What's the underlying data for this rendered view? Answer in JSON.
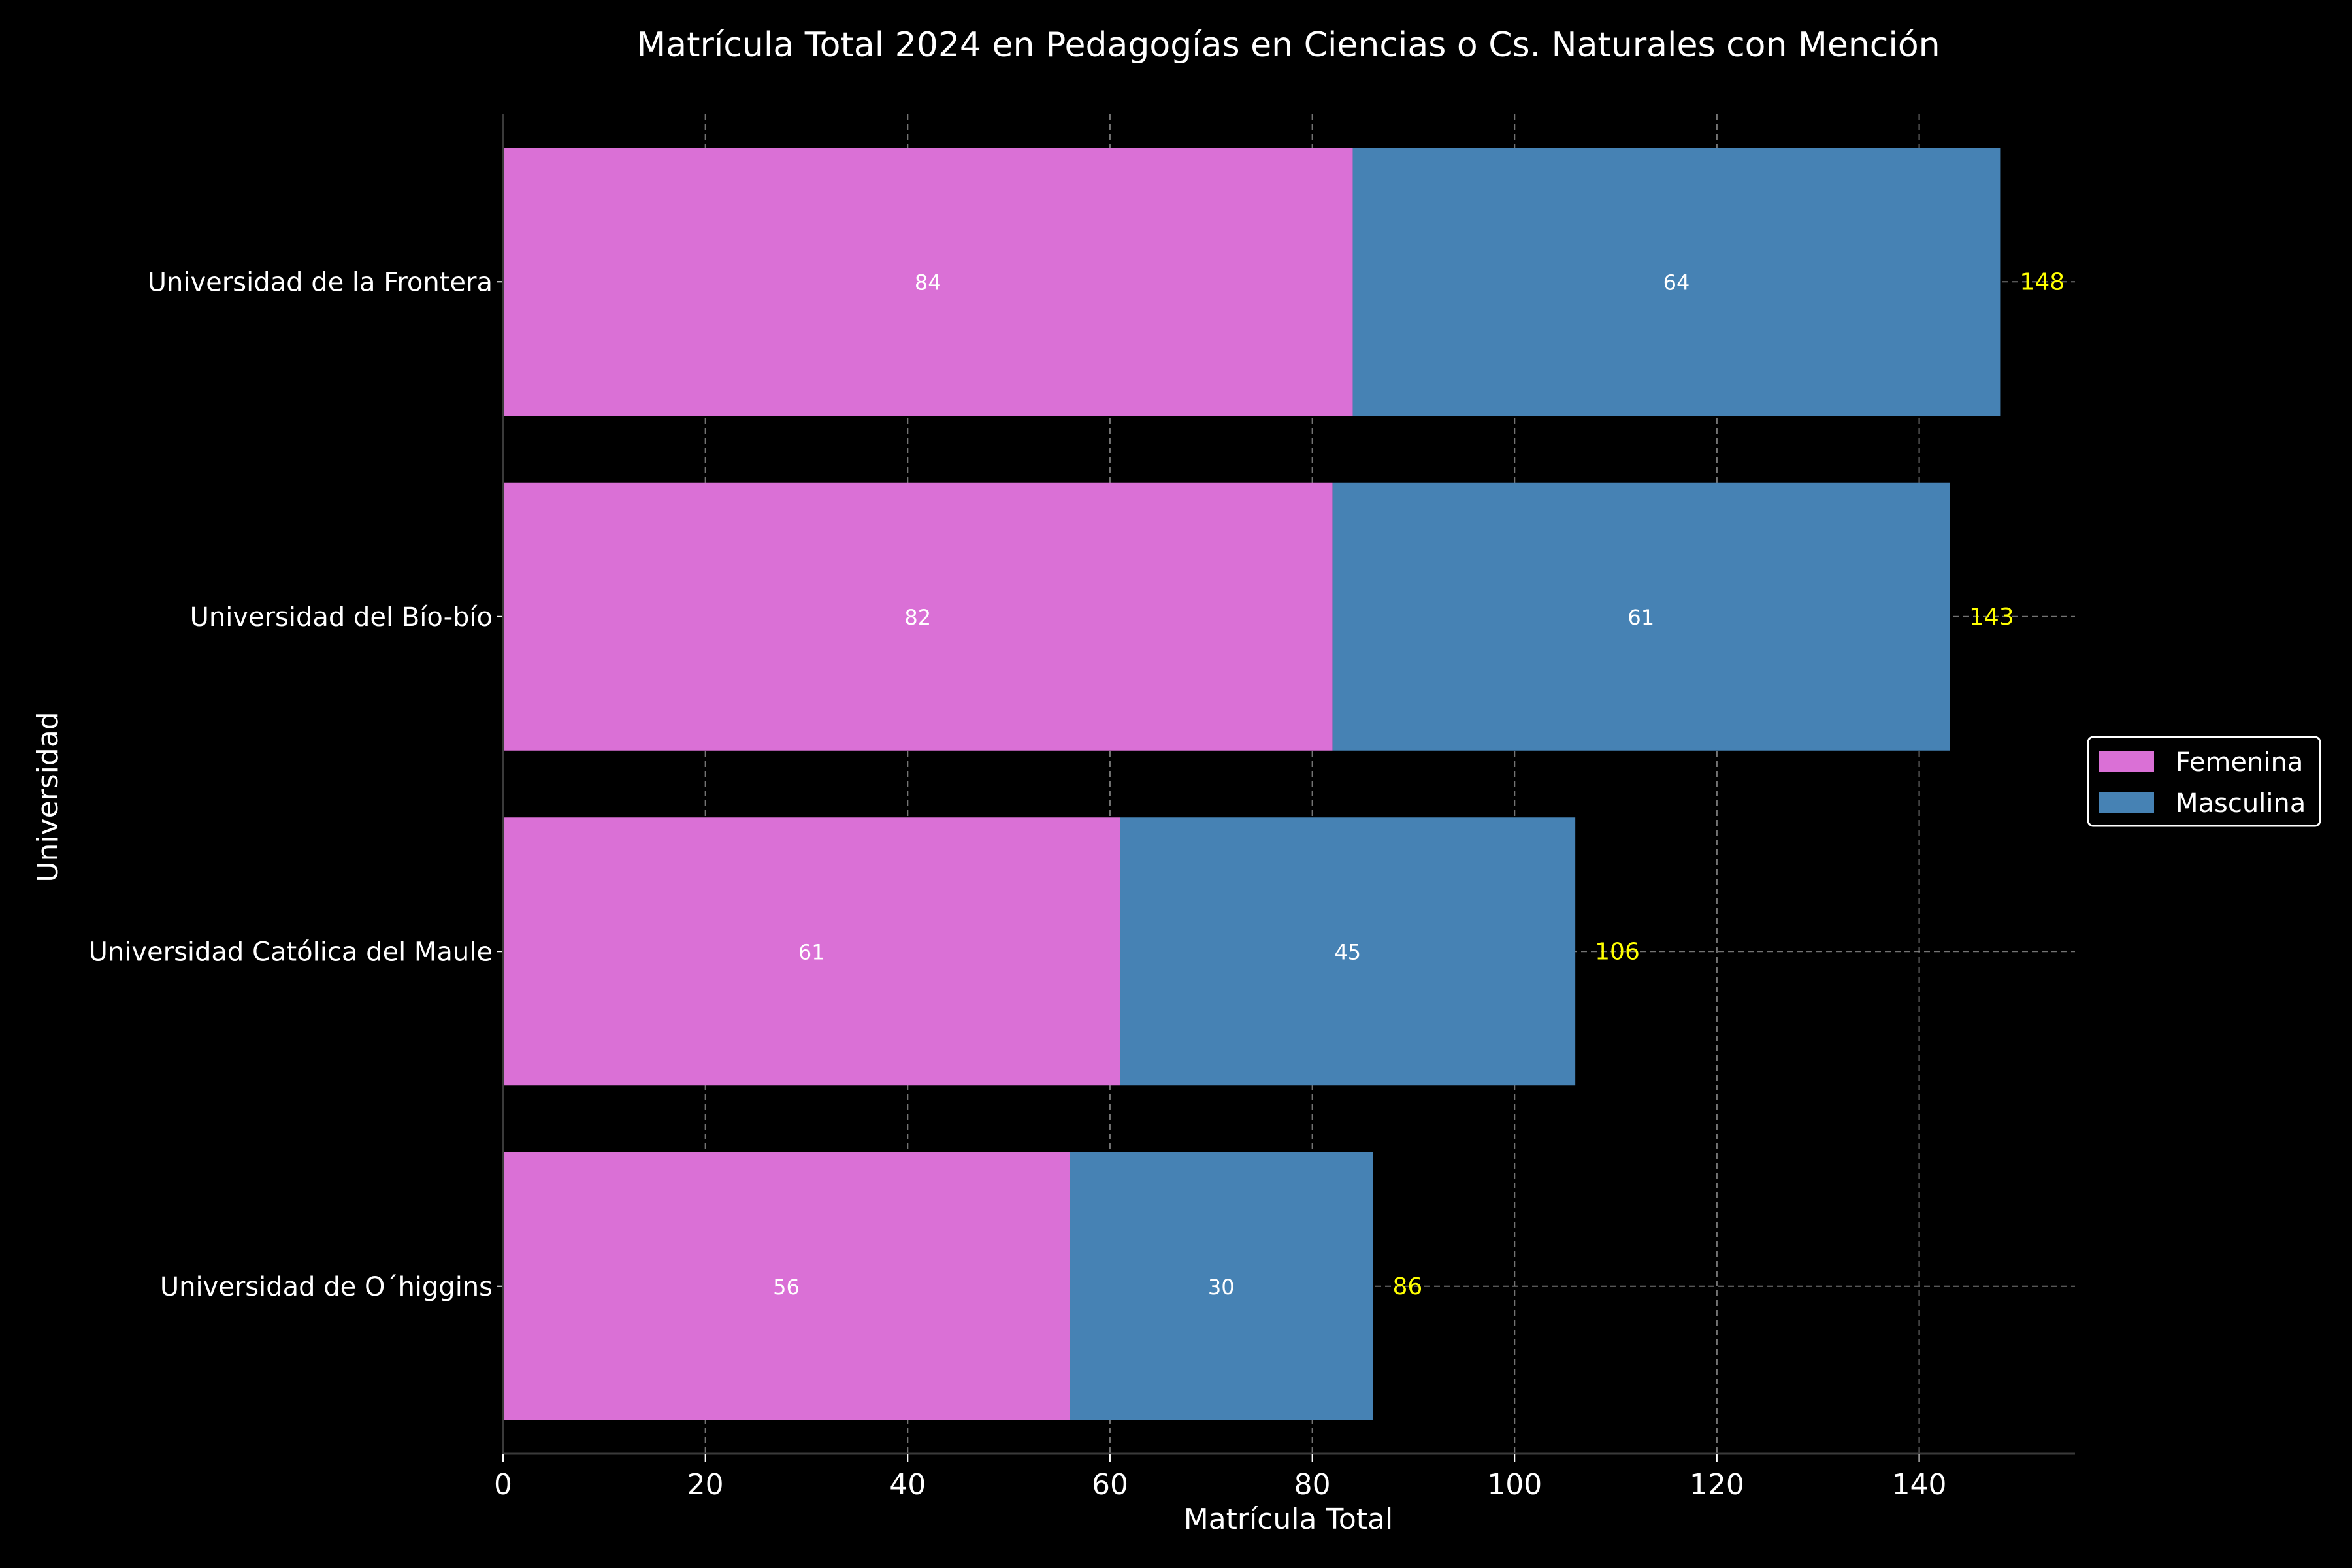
{
  "chart_data": {
    "type": "bar",
    "orientation": "horizontal",
    "stacked": true,
    "title": "Matrícula Total 2024 en Pedagogías en Ciencias o Cs. Naturales con Mención",
    "xlabel": "Matrícula Total",
    "ylabel": "Universidad",
    "categories": [
      "Universidad de la Frontera",
      "Universidad del Bío-bío",
      "Universidad Católica del Maule",
      "Universidad de O´higgins"
    ],
    "series": [
      {
        "name": "Femenina",
        "values": [
          84,
          82,
          61,
          56
        ],
        "color": "#da70d6"
      },
      {
        "name": "Masculina",
        "values": [
          64,
          61,
          45,
          30
        ],
        "color": "#4682b4"
      }
    ],
    "totals": [
      148,
      143,
      106,
      86
    ],
    "total_label_color": "#ffff00",
    "xlim": [
      0,
      155.4
    ],
    "xticks": [
      0,
      20,
      40,
      60,
      80,
      100,
      120,
      140
    ],
    "grid": true,
    "legend_position": "right",
    "background": "#000000",
    "text_color": "#ffffff"
  }
}
